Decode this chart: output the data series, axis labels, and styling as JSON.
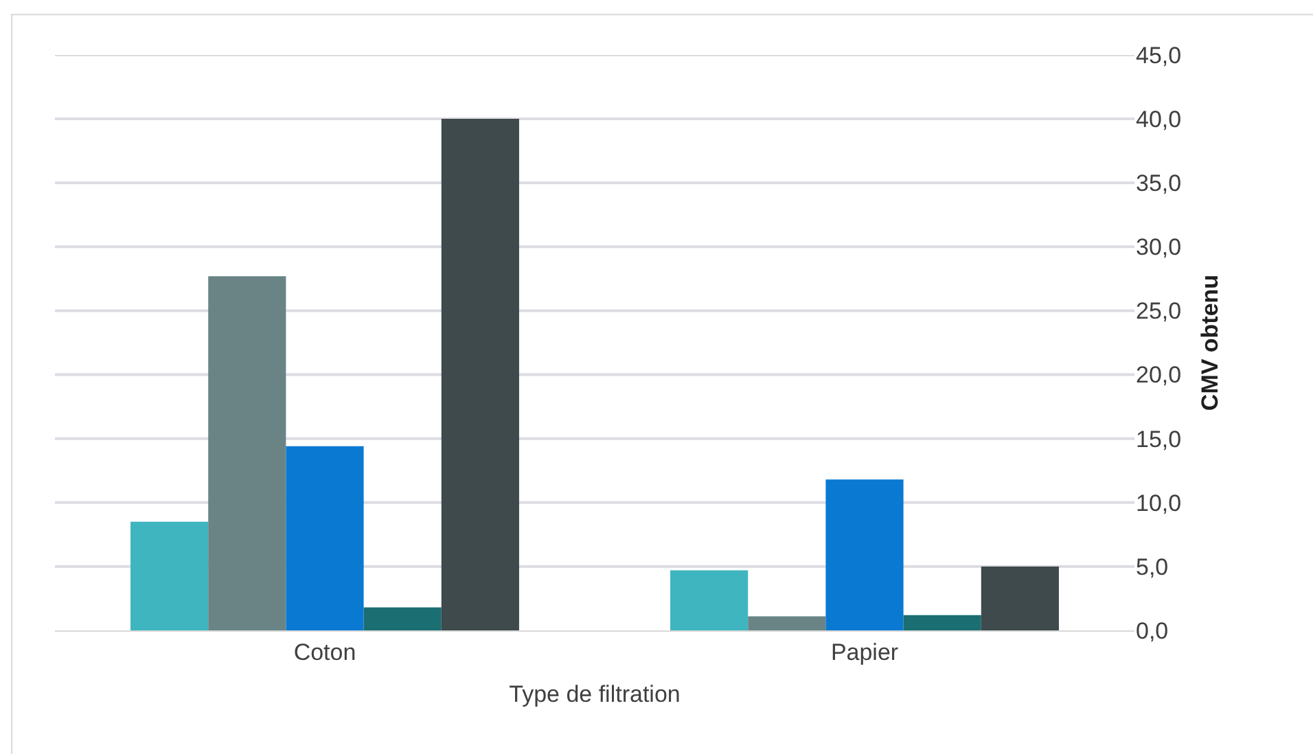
{
  "chart_data": {
    "type": "bar",
    "xlabel": "Type de filtration",
    "ylabel": "CMV obtenu",
    "categories": [
      "Coton",
      "Papier"
    ],
    "series": [
      {
        "color": "#3fb5bf",
        "values": [
          8.5,
          4.7
        ]
      },
      {
        "color": "#6a8486",
        "values": [
          27.7,
          1.1
        ]
      },
      {
        "color": "#0a79d2",
        "values": [
          14.4,
          11.8
        ]
      },
      {
        "color": "#1b6e72",
        "values": [
          1.8,
          1.2
        ]
      },
      {
        "color": "#3e4a4c",
        "values": [
          40.0,
          5.0
        ]
      }
    ],
    "ylim": [
      0,
      45
    ],
    "yticks": [
      {
        "value": 0,
        "label": "0,0"
      },
      {
        "value": 5,
        "label": "5,0"
      },
      {
        "value": 10,
        "label": "10,0"
      },
      {
        "value": 15,
        "label": "15,0"
      },
      {
        "value": 20,
        "label": "20,0"
      },
      {
        "value": 25,
        "label": "25,0"
      },
      {
        "value": 30,
        "label": "30,0"
      },
      {
        "value": 35,
        "label": "35,0"
      },
      {
        "value": 40,
        "label": "40,0"
      },
      {
        "value": 45,
        "label": "45,0"
      }
    ],
    "grid": "y"
  }
}
